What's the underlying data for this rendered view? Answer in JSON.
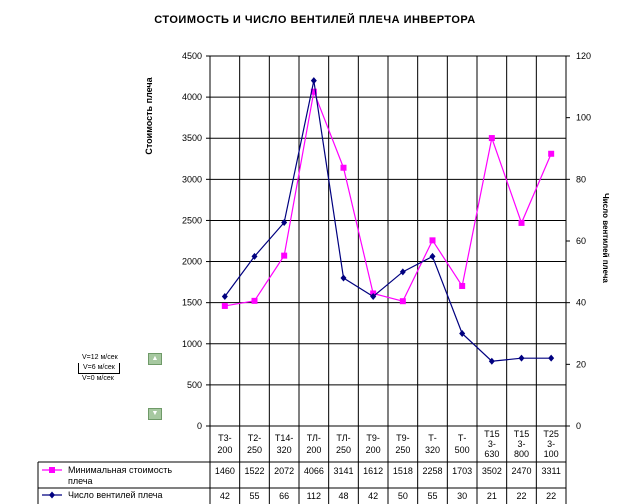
{
  "chart_data": {
    "type": "line",
    "title": "СТОИМОСТЬ И ЧИСЛО ВЕНТИЛЕЙ ПЛЕЧА ИНВЕРТОРА",
    "ylabel": "Стоимость плеча",
    "y2label": "Число вентилей плеча",
    "ylim": [
      0,
      4500
    ],
    "y2lim": [
      0,
      120
    ],
    "yticks": [
      "0",
      "500",
      "1000",
      "1500",
      "2000",
      "2500",
      "3000",
      "3500",
      "4000",
      "4500"
    ],
    "y2ticks": [
      "0",
      "20",
      "40",
      "60",
      "80",
      "100",
      "120"
    ],
    "categories": [
      [
        "Т3-",
        "200"
      ],
      [
        "Т2-",
        "250"
      ],
      [
        "Т14-",
        "320"
      ],
      [
        "ТЛ-",
        "200"
      ],
      [
        "ТЛ-",
        "250"
      ],
      [
        "Т9-",
        "200"
      ],
      [
        "Т9-",
        "250"
      ],
      [
        "Т-",
        "320"
      ],
      [
        "Т-",
        "500"
      ],
      [
        "Т15",
        "3-",
        "630"
      ],
      [
        "Т15",
        "3-",
        "800"
      ],
      [
        "Т25",
        "3-",
        "100"
      ]
    ],
    "series": [
      {
        "name": "Минимальная стоимость плеча",
        "axis": "left",
        "color": "#ff00ff",
        "marker": "square",
        "values": [
          1460,
          1522,
          2072,
          4066,
          3141,
          1612,
          1518,
          2258,
          1703,
          3502,
          2470,
          3311
        ]
      },
      {
        "name": "Число вентилей плеча",
        "axis": "right",
        "color": "#000080",
        "marker": "diamond",
        "values": [
          42,
          55,
          66,
          112,
          48,
          42,
          50,
          55,
          30,
          21,
          22,
          22
        ]
      }
    ],
    "grid": true,
    "legend": "data-table-bottom"
  },
  "controls": {
    "option1": "V=12 м/сек",
    "option2": "V=6 м/сек",
    "option3": "V=0 м/сек"
  }
}
